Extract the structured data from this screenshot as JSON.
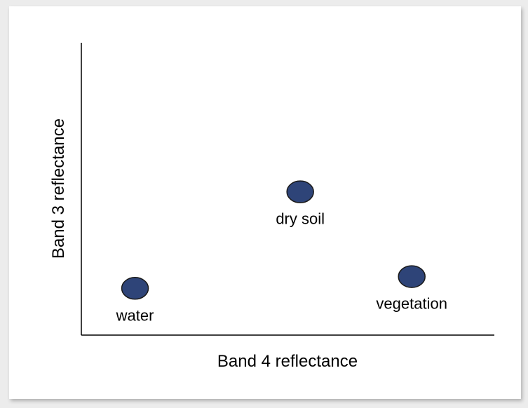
{
  "chart_data": {
    "type": "scatter",
    "title": "",
    "xlabel": "Band 4 reflectance",
    "ylabel": "Band 3 reflectance",
    "xlim": [
      0,
      100
    ],
    "ylim": [
      0,
      100
    ],
    "grid": false,
    "legend": "none",
    "marker_color": "#2e4478",
    "marker_edge_color": "#1a1a1a",
    "points": [
      {
        "label": "water",
        "x": 13,
        "y": 16
      },
      {
        "label": "dry soil",
        "x": 53,
        "y": 49
      },
      {
        "label": "vegetation",
        "x": 80,
        "y": 20
      }
    ]
  }
}
